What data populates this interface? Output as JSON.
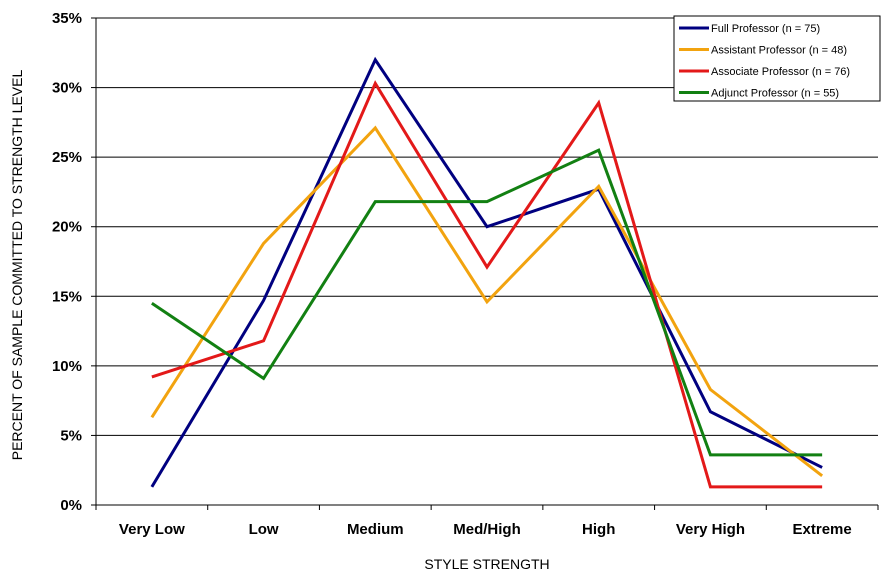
{
  "chart_data": {
    "type": "line",
    "title": "",
    "xlabel": "STYLE STRENGTH",
    "ylabel": "PERCENT OF SAMPLE COMMITTED TO STRENGTH LEVEL",
    "categories": [
      "Very Low",
      "Low",
      "Medium",
      "Med/High",
      "High",
      "Very High",
      "Extreme"
    ],
    "ylim": [
      0,
      35
    ],
    "yticks": [
      0,
      5,
      10,
      15,
      20,
      25,
      30,
      35
    ],
    "ytick_labels": [
      "0%",
      "5%",
      "10%",
      "15%",
      "20%",
      "25%",
      "30%",
      "35%"
    ],
    "grid": "horizontal",
    "legend": "top-right",
    "series": [
      {
        "name": "Full Professor (n = 75)",
        "color": "#000080",
        "values": [
          1.3,
          14.7,
          32.0,
          20.0,
          22.7,
          6.7,
          2.7
        ]
      },
      {
        "name": "Assistant Professor (n = 48)",
        "color": "#f2a30f",
        "values": [
          6.3,
          18.8,
          27.1,
          14.6,
          22.9,
          8.3,
          2.1
        ]
      },
      {
        "name": "Associate Professor (n = 76)",
        "color": "#e31919",
        "values": [
          9.2,
          11.8,
          30.3,
          17.1,
          28.9,
          1.3,
          1.3
        ]
      },
      {
        "name": "Adjunct Professor (n = 55)",
        "color": "#128012",
        "values": [
          14.5,
          9.1,
          21.8,
          21.8,
          25.5,
          3.6,
          3.6
        ]
      }
    ]
  }
}
